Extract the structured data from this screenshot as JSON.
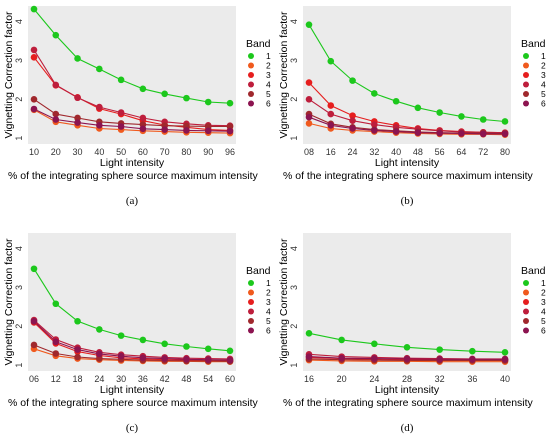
{
  "band_colors": [
    "#1cc81c",
    "#f05a1e",
    "#e61e1e",
    "#be1e3c",
    "#a0282d",
    "#8c1450"
  ],
  "panel_bg": "#ebebeb",
  "chart_data": [
    {
      "type": "line",
      "caption": "(a)",
      "xlabel": "Light intensity",
      "xlabel2": "% of the integrating sphere source maximum intensity",
      "ylabel": "Vignetting Correction factor",
      "legend_title": "Band",
      "categories": [
        "10",
        "20",
        "30",
        "40",
        "50",
        "60",
        "70",
        "80",
        "90",
        "96"
      ],
      "yticks": [
        "1",
        "2",
        "3",
        "4"
      ],
      "ylim": [
        0.85,
        4.4
      ],
      "series": [
        {
          "name": "1",
          "values": [
            4.32,
            3.65,
            3.05,
            2.78,
            2.5,
            2.27,
            2.14,
            2.03,
            1.93,
            1.9
          ]
        },
        {
          "name": "2",
          "values": [
            1.73,
            1.42,
            1.33,
            1.25,
            1.22,
            1.19,
            1.17,
            1.15,
            1.14,
            1.13
          ]
        },
        {
          "name": "3",
          "values": [
            3.08,
            2.36,
            2.05,
            1.76,
            1.62,
            1.45,
            1.34,
            1.28,
            1.22,
            1.2
          ]
        },
        {
          "name": "4",
          "values": [
            3.27,
            2.37,
            2.04,
            1.8,
            1.66,
            1.52,
            1.42,
            1.37,
            1.33,
            1.32
          ]
        },
        {
          "name": "5",
          "values": [
            2.0,
            1.62,
            1.52,
            1.42,
            1.38,
            1.35,
            1.32,
            1.31,
            1.3,
            1.3
          ]
        },
        {
          "name": "6",
          "values": [
            1.75,
            1.48,
            1.4,
            1.33,
            1.3,
            1.24,
            1.22,
            1.2,
            1.19,
            1.18
          ]
        }
      ]
    },
    {
      "type": "line",
      "caption": "(b)",
      "xlabel": "Light intensity",
      "xlabel2": "% of the integrating sphere source maximum intensity",
      "ylabel": "Vignetting Correction factor",
      "legend_title": "Band",
      "categories": [
        "08",
        "16",
        "24",
        "32",
        "40",
        "48",
        "56",
        "64",
        "72",
        "80"
      ],
      "yticks": [
        "1",
        "2",
        "3",
        "4"
      ],
      "ylim": [
        0.85,
        4.4
      ],
      "series": [
        {
          "name": "1",
          "values": [
            3.92,
            2.98,
            2.48,
            2.15,
            1.95,
            1.78,
            1.66,
            1.56,
            1.48,
            1.43
          ]
        },
        {
          "name": "2",
          "values": [
            1.38,
            1.25,
            1.2,
            1.17,
            1.14,
            1.12,
            1.11,
            1.1,
            1.1,
            1.09
          ]
        },
        {
          "name": "3",
          "values": [
            2.43,
            1.84,
            1.58,
            1.43,
            1.33,
            1.25,
            1.2,
            1.17,
            1.15,
            1.14
          ]
        },
        {
          "name": "4",
          "values": [
            2.0,
            1.62,
            1.45,
            1.35,
            1.28,
            1.23,
            1.19,
            1.16,
            1.15,
            1.14
          ]
        },
        {
          "name": "5",
          "values": [
            1.62,
            1.37,
            1.28,
            1.22,
            1.19,
            1.16,
            1.14,
            1.13,
            1.13,
            1.12
          ]
        },
        {
          "name": "6",
          "values": [
            1.54,
            1.33,
            1.25,
            1.2,
            1.17,
            1.14,
            1.13,
            1.12,
            1.11,
            1.11
          ]
        }
      ]
    },
    {
      "type": "line",
      "caption": "(c)",
      "xlabel": "Light intensity",
      "xlabel2": "% of the integrating sphere source maximum intensity",
      "ylabel": "Vignetting Correction factor",
      "legend_title": "Band",
      "categories": [
        "06",
        "12",
        "18",
        "24",
        "30",
        "36",
        "42",
        "48",
        "54",
        "60"
      ],
      "yticks": [
        "1",
        "2",
        "3",
        "4"
      ],
      "ylim": [
        0.85,
        4.4
      ],
      "series": [
        {
          "name": "1",
          "values": [
            3.48,
            2.58,
            2.13,
            1.92,
            1.76,
            1.65,
            1.55,
            1.48,
            1.42,
            1.37
          ]
        },
        {
          "name": "2",
          "values": [
            1.42,
            1.24,
            1.17,
            1.14,
            1.12,
            1.11,
            1.1,
            1.1,
            1.09,
            1.09
          ]
        },
        {
          "name": "3",
          "values": [
            2.1,
            1.56,
            1.35,
            1.25,
            1.19,
            1.16,
            1.14,
            1.13,
            1.12,
            1.12
          ]
        },
        {
          "name": "4",
          "values": [
            2.16,
            1.66,
            1.45,
            1.33,
            1.27,
            1.23,
            1.2,
            1.18,
            1.17,
            1.16
          ]
        },
        {
          "name": "5",
          "values": [
            1.52,
            1.3,
            1.21,
            1.17,
            1.15,
            1.13,
            1.12,
            1.11,
            1.11,
            1.1
          ]
        },
        {
          "name": "6",
          "values": [
            2.13,
            1.6,
            1.4,
            1.29,
            1.23,
            1.19,
            1.17,
            1.15,
            1.14,
            1.13
          ]
        }
      ]
    },
    {
      "type": "line",
      "caption": "(d)",
      "xlabel": "Light intensity",
      "xlabel2": "% of the integrating sphere source maximum intensity",
      "ylabel": "Vignetting Correction factor",
      "legend_title": "Band",
      "categories": [
        "16",
        "20",
        "24",
        "28",
        "32",
        "36",
        "40"
      ],
      "yticks": [
        "1",
        "2",
        "3",
        "4"
      ],
      "ylim": [
        0.85,
        4.4
      ],
      "series": [
        {
          "name": "1",
          "values": [
            1.82,
            1.65,
            1.55,
            1.46,
            1.4,
            1.36,
            1.33
          ]
        },
        {
          "name": "2",
          "values": [
            1.13,
            1.11,
            1.1,
            1.1,
            1.09,
            1.09,
            1.09
          ]
        },
        {
          "name": "3",
          "values": [
            1.2,
            1.17,
            1.15,
            1.14,
            1.14,
            1.13,
            1.13
          ]
        },
        {
          "name": "4",
          "values": [
            1.28,
            1.22,
            1.2,
            1.18,
            1.17,
            1.16,
            1.16
          ]
        },
        {
          "name": "5",
          "values": [
            1.16,
            1.14,
            1.13,
            1.12,
            1.12,
            1.12,
            1.12
          ]
        },
        {
          "name": "6",
          "values": [
            1.22,
            1.18,
            1.17,
            1.16,
            1.15,
            1.15,
            1.15
          ]
        }
      ]
    }
  ]
}
